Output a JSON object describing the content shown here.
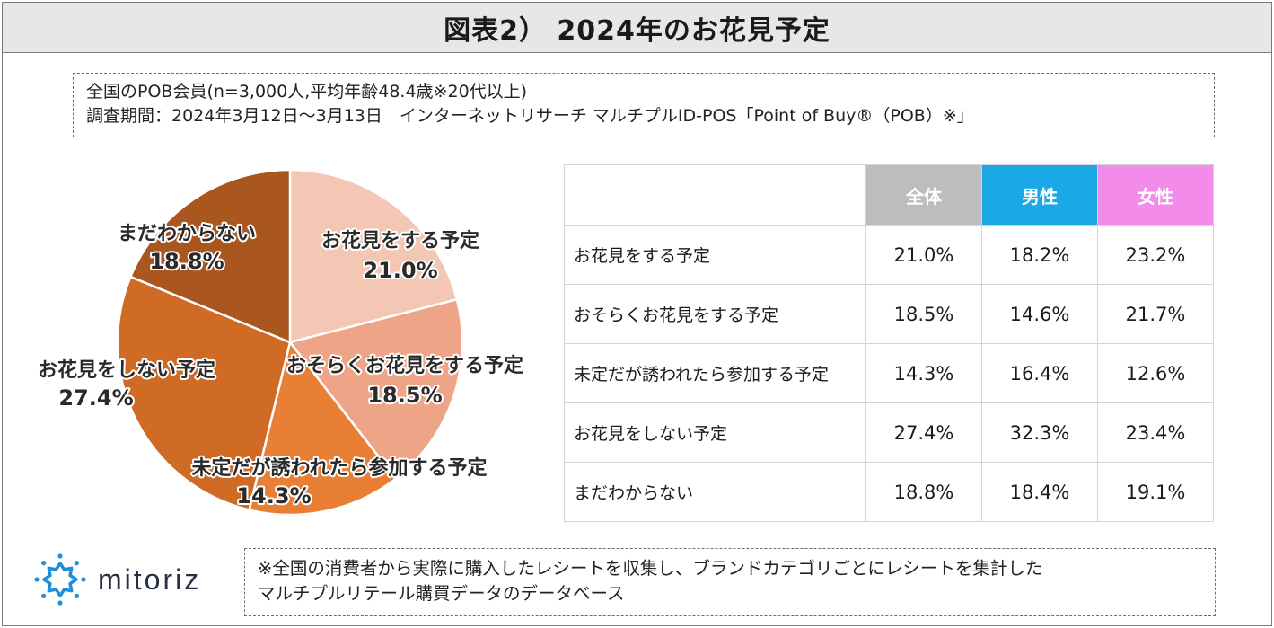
{
  "title": "図表2） 2024年のお花見予定",
  "notes": {
    "line1": "全国のPOB会員(n=3,000人,平均年齢48.4歳※20代以上)",
    "line2": "調査期間：2024年3月12日～3月13日　インターネットリサーチ マルチプルID-POS「Point of Buy®（POB）※」"
  },
  "chart_data": [
    {
      "type": "pie",
      "categories": [
        "お花見をする予定",
        "おそらくお花見をする予定",
        "未定だが誘われたら参加する予定",
        "お花見をしない予定",
        "まだわからない"
      ],
      "values": [
        21.0,
        18.5,
        14.3,
        27.4,
        18.8
      ],
      "labels": [
        "21.0%",
        "18.5%",
        "14.3%",
        "27.4%",
        "18.8%"
      ],
      "colors": [
        "#f4c7b5",
        "#eea587",
        "#e97f35",
        "#cf6b25",
        "#a9561f"
      ],
      "start_angle_deg": 0,
      "direction": "clockwise"
    },
    {
      "type": "table",
      "columns": [
        "全体",
        "男性",
        "女性"
      ],
      "column_colors": [
        "#bdbdbd",
        "#1aa9e6",
        "#f28be9"
      ],
      "rows": [
        {
          "label": "お花見をする予定",
          "values": [
            "21.0%",
            "18.2%",
            "23.2%"
          ]
        },
        {
          "label": "おそらくお花見をする予定",
          "values": [
            "18.5%",
            "14.6%",
            "21.7%"
          ]
        },
        {
          "label": "未定だが誘われたら参加する予定",
          "values": [
            "14.3%",
            "16.4%",
            "12.6%"
          ]
        },
        {
          "label": "お花見をしない予定",
          "values": [
            "27.4%",
            "32.3%",
            "23.4%"
          ]
        },
        {
          "label": "まだわからない",
          "values": [
            "18.8%",
            "18.4%",
            "19.1%"
          ]
        }
      ]
    }
  ],
  "logo": {
    "text": "mitoriz",
    "icon": "mitoriz-logo-icon",
    "color": "#1f8fd6"
  },
  "footnote": {
    "line1": "※全国の消費者から実際に購入したレシートを収集し、ブランドカテゴリごとにレシートを集計した",
    "line2": "マルチプルリテール購買データのデータベース"
  }
}
